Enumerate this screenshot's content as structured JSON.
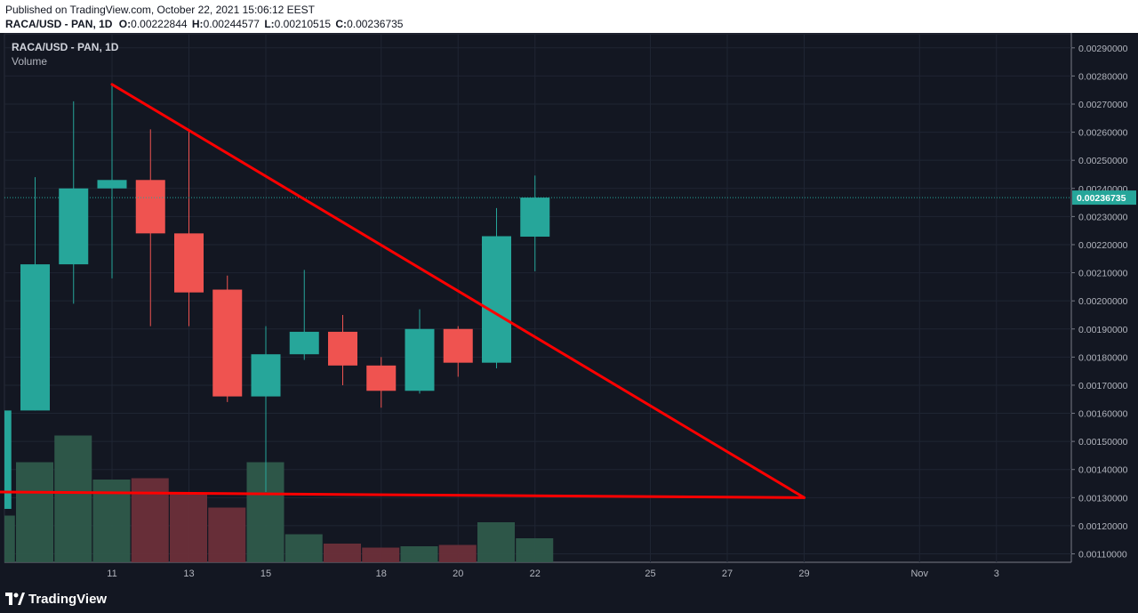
{
  "header": {
    "published": "Published on TradingView.com, October 22, 2021 15:06:12 EEST",
    "symbol": "RACA/USD - PAN, 1D",
    "o_label": "O:",
    "o_value": "0.00222844",
    "h_label": "H:",
    "h_value": "0.00244577",
    "l_label": "L:",
    "l_value": "0.00210515",
    "c_label": "C:",
    "c_value": "0.00236735"
  },
  "legend": {
    "symbol": "RACA/USD - PAN, 1D",
    "volume": "Volume"
  },
  "footer": {
    "brand": "TradingView"
  },
  "colors": {
    "background": "#131722",
    "up": "#26a69a",
    "down": "#ef5350",
    "volume_up": "#2e5a4b",
    "volume_down": "#6b2f3a",
    "trendline": "#ff0000",
    "grid": "#1f2533",
    "price_label_bg": "#26a69a"
  },
  "chart_data": {
    "type": "candlestick",
    "title": "RACA/USD - PAN, 1D",
    "ylim": [
      0.00107,
      0.00295
    ],
    "y_ticks": [
      "0.00290000",
      "0.00280000",
      "0.00270000",
      "0.00260000",
      "0.00250000",
      "0.00240000",
      "0.00230000",
      "0.00220000",
      "0.00210000",
      "0.00200000",
      "0.00190000",
      "0.00180000",
      "0.00170000",
      "0.00160000",
      "0.00150000",
      "0.00140000",
      "0.00130000",
      "0.00120000",
      "0.00110000"
    ],
    "x_ticks": [
      {
        "day": 11,
        "label": "11"
      },
      {
        "day": 13,
        "label": "13"
      },
      {
        "day": 15,
        "label": "15"
      },
      {
        "day": 18,
        "label": "18"
      },
      {
        "day": 20,
        "label": "20"
      },
      {
        "day": 22,
        "label": "22"
      },
      {
        "day": 25,
        "label": "25"
      },
      {
        "day": 27,
        "label": "27"
      },
      {
        "day": 29,
        "label": "29"
      },
      {
        "day": 32,
        "label": "Nov"
      },
      {
        "day": 34,
        "label": "3"
      }
    ],
    "candles": [
      {
        "day": 8,
        "open": 0.00126,
        "high": 0.00161,
        "low": 0.00126,
        "close": 0.00161
      },
      {
        "day": 9,
        "open": 0.00161,
        "high": 0.00244,
        "low": 0.00161,
        "close": 0.00213
      },
      {
        "day": 10,
        "open": 0.00213,
        "high": 0.00271,
        "low": 0.00199,
        "close": 0.0024
      },
      {
        "day": 11,
        "open": 0.0024,
        "high": 0.00277,
        "low": 0.00208,
        "close": 0.00243
      },
      {
        "day": 12,
        "open": 0.00243,
        "high": 0.00261,
        "low": 0.00191,
        "close": 0.00224
      },
      {
        "day": 13,
        "open": 0.00224,
        "high": 0.00261,
        "low": 0.00191,
        "close": 0.00203
      },
      {
        "day": 14,
        "open": 0.00204,
        "high": 0.00209,
        "low": 0.00164,
        "close": 0.00166
      },
      {
        "day": 15,
        "open": 0.00166,
        "high": 0.00191,
        "low": 0.00132,
        "close": 0.00181
      },
      {
        "day": 16,
        "open": 0.00181,
        "high": 0.00211,
        "low": 0.00179,
        "close": 0.00189
      },
      {
        "day": 17,
        "open": 0.00189,
        "high": 0.00195,
        "low": 0.0017,
        "close": 0.00177
      },
      {
        "day": 18,
        "open": 0.00177,
        "high": 0.0018,
        "low": 0.00162,
        "close": 0.00168
      },
      {
        "day": 19,
        "open": 0.00168,
        "high": 0.00197,
        "low": 0.00167,
        "close": 0.0019
      },
      {
        "day": 20,
        "open": 0.0019,
        "high": 0.00191,
        "low": 0.00173,
        "close": 0.00178
      },
      {
        "day": 21,
        "open": 0.00178,
        "high": 0.00233,
        "low": 0.00176,
        "close": 0.00223
      },
      {
        "day": 22,
        "open": 0.00222844,
        "high": 0.00244577,
        "low": 0.00210515,
        "close": 0.00236735
      }
    ],
    "volume": [
      {
        "day": 8,
        "value": 0.35,
        "up": true
      },
      {
        "day": 9,
        "value": 0.75,
        "up": true
      },
      {
        "day": 10,
        "value": 0.95,
        "up": true
      },
      {
        "day": 11,
        "value": 0.62,
        "up": true
      },
      {
        "day": 12,
        "value": 0.63,
        "up": false
      },
      {
        "day": 13,
        "value": 0.52,
        "up": false
      },
      {
        "day": 14,
        "value": 0.41,
        "up": false
      },
      {
        "day": 15,
        "value": 0.75,
        "up": true
      },
      {
        "day": 16,
        "value": 0.21,
        "up": true
      },
      {
        "day": 17,
        "value": 0.14,
        "up": false
      },
      {
        "day": 18,
        "value": 0.11,
        "up": false
      },
      {
        "day": 19,
        "value": 0.12,
        "up": true
      },
      {
        "day": 20,
        "value": 0.13,
        "up": false
      },
      {
        "day": 21,
        "value": 0.3,
        "up": true
      },
      {
        "day": 22,
        "value": 0.18,
        "up": true
      }
    ],
    "current_price": {
      "value": 0.00236735,
      "label": "0.00236735"
    },
    "trendlines": [
      {
        "from": {
          "day": 11,
          "price": 0.00277
        },
        "to": {
          "day": 29,
          "price": 0.0013
        }
      },
      {
        "from": {
          "day": 8,
          "price": 0.00132
        },
        "to": {
          "day": 29,
          "price": 0.0013
        }
      }
    ],
    "grid": true
  }
}
